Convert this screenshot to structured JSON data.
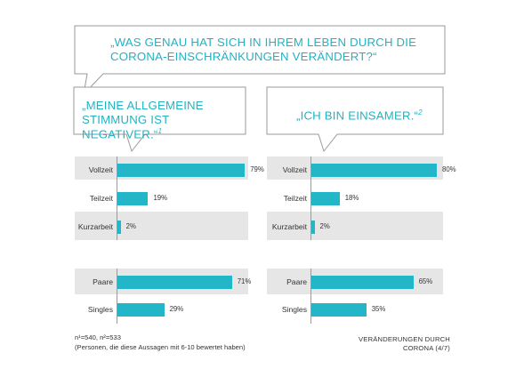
{
  "question_bubble": {
    "line1": "„WAS GENAU HAT SICH IN IHREM LEBEN DURCH DIE",
    "line2": "CORONA-EINSCHRÄNKUNGEN VERÄNDERT?“"
  },
  "left_bubble": {
    "line1": "„MEINE ALLGEMEINE",
    "line2": "STIMMUNG IST NEGATIVER.“",
    "footnote": "1"
  },
  "right_bubble": {
    "line1": "„ICH BIN EINSAMER.“",
    "footnote": "2"
  },
  "colors": {
    "accent": "#22b6c8",
    "band": "#e7e6e6",
    "text": "#333333"
  },
  "chart_data": [
    {
      "type": "bar",
      "orientation": "horizontal",
      "categories": [
        "Vollzeit",
        "Teilzeit",
        "Kurzarbeit",
        "Paare",
        "Singles"
      ],
      "values": [
        79,
        19,
        2,
        71,
        29
      ],
      "value_labels": [
        "79%",
        "19%",
        "2%",
        "71%",
        "29%"
      ],
      "xlim": [
        0,
        100
      ]
    },
    {
      "type": "bar",
      "orientation": "horizontal",
      "categories": [
        "Vollzeit",
        "Teilzeit",
        "Kurzarbeit",
        "Paare",
        "Singles"
      ],
      "values": [
        80,
        18,
        2,
        65,
        35
      ],
      "value_labels": [
        "80%",
        "18%",
        "2%",
        "65%",
        "35%"
      ],
      "xlim": [
        0,
        100
      ]
    }
  ],
  "footer": {
    "sample": "n¹=540,  n²=533",
    "note": "(Personen, die diese Aussagen mit 6-10 bewertet haben)",
    "section_line1": "VERÄNDERUNGEN DURCH",
    "section_line2": "CORONA (4/7)"
  }
}
